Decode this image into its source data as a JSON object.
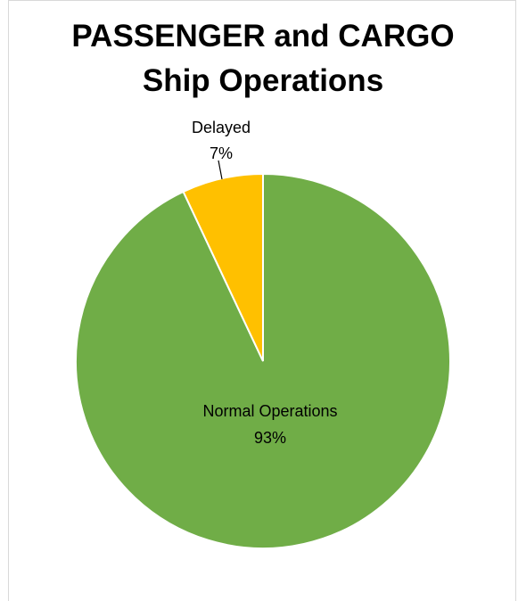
{
  "chart_data": {
    "type": "pie",
    "title_line1": "PASSENGER and CARGO",
    "title_line2": "Ship Operations",
    "slices": [
      {
        "name": "Normal Operations",
        "value": 93,
        "label": "93%",
        "color": "#70AD47"
      },
      {
        "name": "Delayed",
        "value": 7,
        "label": "7%",
        "color": "#FFC000"
      }
    ],
    "legend": "none",
    "start_angle": "12 o'clock",
    "direction": "counterclockwise-from-top-for-small-slice"
  }
}
